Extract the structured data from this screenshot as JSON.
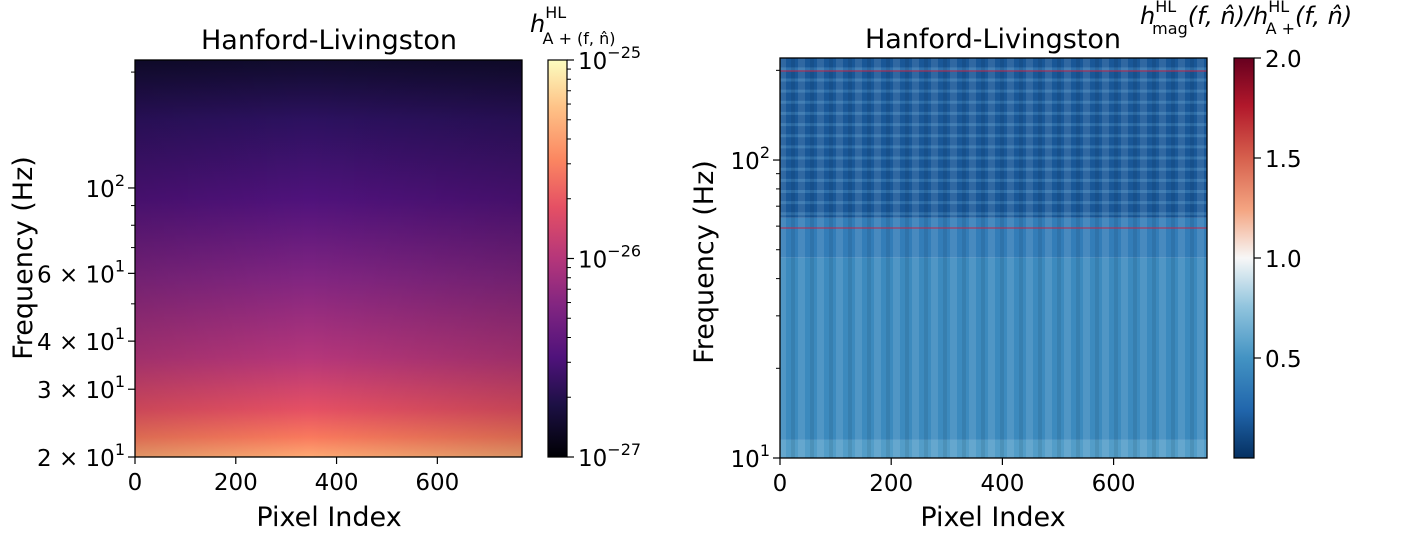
{
  "chart_data": [
    {
      "type": "heatmap",
      "title": "Hanford-Livingston",
      "xlabel": "Pixel Index",
      "ylabel": "Frequency (Hz)",
      "xlim": [
        0,
        768
      ],
      "ylim": [
        20,
        215
      ],
      "yscale": "log",
      "xticks": [
        0,
        200,
        400,
        600
      ],
      "xtick_labels": [
        "0",
        "200",
        "400",
        "600"
      ],
      "yticks": [
        20,
        30,
        40,
        60,
        100
      ],
      "ytick_labels": [
        {
          "base": "2 × 10",
          "exp": "1"
        },
        {
          "base": "3 × 10",
          "exp": "1"
        },
        {
          "base": "4 × 10",
          "exp": "1"
        },
        {
          "base": "6 × 10",
          "exp": "1"
        },
        {
          "base": "10",
          "exp": "2"
        }
      ],
      "colorbar": {
        "label": {
          "main": "h",
          "sup": "HL",
          "sub": "A + (f, n̂)"
        },
        "scale": "log",
        "range": [
          1e-27,
          1e-25
        ],
        "colormap": "magma",
        "ticks": [
          1e-27,
          1e-26,
          1e-25
        ],
        "tick_labels": [
          {
            "base": "10",
            "exp": "−27"
          },
          {
            "base": "10",
            "exp": "−26"
          },
          {
            "base": "10",
            "exp": "−25"
          }
        ]
      },
      "description_values": {
        "frequency_low_value": 1.5e-26,
        "frequency_high_value": 1.3e-27
      }
    },
    {
      "type": "heatmap",
      "title": "Hanford-Livingston",
      "xlabel": "Pixel Index",
      "ylabel": "Frequency (Hz)",
      "xlim": [
        0,
        768
      ],
      "ylim": [
        10,
        220
      ],
      "yscale": "log",
      "xticks": [
        0,
        200,
        400,
        600
      ],
      "xtick_labels": [
        "0",
        "200",
        "400",
        "600"
      ],
      "yticks": [
        10,
        100
      ],
      "ytick_labels": [
        {
          "base": "10",
          "exp": "1"
        },
        {
          "base": "10",
          "exp": "2"
        }
      ],
      "colorbar": {
        "label": {
          "num_main": "h",
          "num_sup": "HL",
          "num_sub": "mag",
          "num_args": "(f, n̂)/",
          "den_main": "h",
          "den_sup": "HL",
          "den_sub": "A +",
          "den_args": "(f, n̂)"
        },
        "scale": "linear",
        "range": [
          0,
          2.0
        ],
        "colormap": "RdBu_r",
        "ticks": [
          0.5,
          1.0,
          1.5,
          2.0
        ],
        "tick_labels": [
          "0.5",
          "1.0",
          "1.5",
          "2.0"
        ]
      },
      "bands": [
        {
          "f_low": 10,
          "f_high": 11.5,
          "value": 0.55
        },
        {
          "f_low": 11.5,
          "f_high": 47,
          "value": 0.45
        },
        {
          "f_low": 47,
          "f_high": 64,
          "value": 0.38
        },
        {
          "f_low": 64,
          "f_high": 220,
          "value": 0.18
        }
      ]
    }
  ]
}
